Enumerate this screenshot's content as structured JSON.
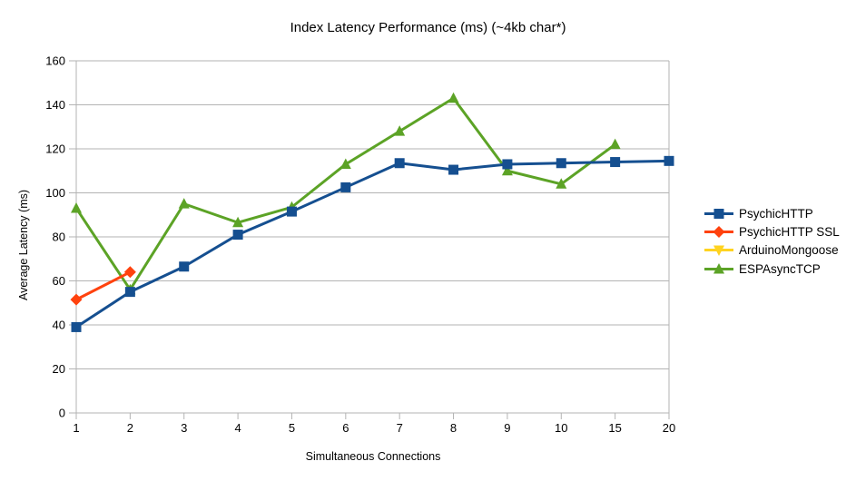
{
  "chart_data": {
    "type": "line",
    "title": "Index Latency Performance (ms) (~4kb char*)",
    "xlabel": "Simultaneous Connections",
    "ylabel": "Average Latency (ms)",
    "categories": [
      "1",
      "2",
      "3",
      "4",
      "5",
      "6",
      "7",
      "8",
      "9",
      "10",
      "15",
      "20"
    ],
    "y_ticks": [
      0,
      20,
      40,
      60,
      80,
      100,
      120,
      140,
      160
    ],
    "ylim": [
      0,
      160
    ],
    "grid": "horizontal",
    "legend_position": "right",
    "series": [
      {
        "name": "PsychicHTTP",
        "color": "#154F90",
        "marker": "square",
        "values": [
          39,
          55,
          66.5,
          81,
          91.5,
          102.5,
          113.5,
          110.5,
          113,
          113.5,
          114,
          114.5
        ]
      },
      {
        "name": "PsychicHTTP SSL",
        "color": "#FF420E",
        "marker": "diamond",
        "values": [
          51.5,
          64,
          null,
          null,
          null,
          null,
          null,
          null,
          null,
          null,
          null,
          null
        ]
      },
      {
        "name": "ArduinoMongoose",
        "color": "#FFD320",
        "marker": "triangle-down",
        "values": [
          null,
          null,
          null,
          null,
          null,
          null,
          null,
          null,
          null,
          null,
          null,
          null
        ]
      },
      {
        "name": "ESPAsyncTCP",
        "color": "#5CA326",
        "marker": "triangle-up",
        "values": [
          93,
          56,
          95,
          86.5,
          93.5,
          113,
          128,
          143,
          110,
          104,
          122,
          null
        ]
      }
    ],
    "colors": {
      "grid": "#B3B3B3",
      "axis": "#B3B3B3",
      "text": "#000000",
      "background": "#FFFFFF"
    }
  }
}
